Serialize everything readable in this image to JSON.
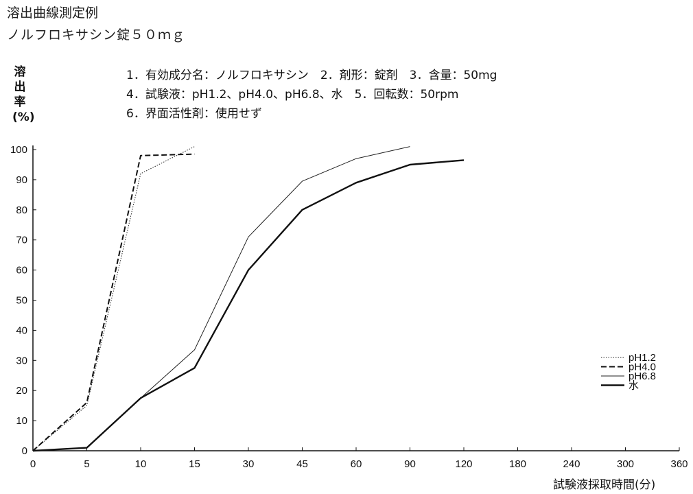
{
  "header": {
    "title": "溶出曲線測定例",
    "subtitle": "ノルフロキサシン錠５０ｍｇ"
  },
  "notes": [
    "1．有効成分名：ノルフロキサシン　2．剤形：錠剤　3．含量：50mg",
    "4．試験液：pH1.2、pH4.0、pH6.8、水　5．回転数：50rpm",
    "6．界面活性剤：使用せず"
  ],
  "chart_data": {
    "type": "line",
    "title": "",
    "xlabel": "試験液採取時間(分)",
    "ylabel": "溶出率(%)",
    "x": [
      "0",
      "5",
      "10",
      "15",
      "30",
      "45",
      "60",
      "90",
      "120",
      "180",
      "240",
      "300",
      "360"
    ],
    "xticks": [
      "0",
      "5",
      "10",
      "15",
      "30",
      "45",
      "60",
      "90",
      "120",
      "180",
      "240",
      "300",
      "360"
    ],
    "yticks": [
      "0",
      "10",
      "20",
      "30",
      "40",
      "50",
      "60",
      "70",
      "80",
      "90",
      "100"
    ],
    "ylim": [
      0,
      100
    ],
    "grid": false,
    "legend_position": "right",
    "series": [
      {
        "name": "pH1.2",
        "style": "dotted",
        "color": "#222222",
        "x": [
          "0",
          "5",
          "10",
          "15"
        ],
        "values": [
          0,
          15,
          92,
          101
        ]
      },
      {
        "name": "pH4.0",
        "style": "dashed",
        "color": "#111111",
        "x": [
          "0",
          "5",
          "10",
          "15"
        ],
        "values": [
          0,
          16,
          98,
          98.5
        ]
      },
      {
        "name": "pH6.8",
        "style": "thin",
        "color": "#222222",
        "x": [
          "0",
          "5",
          "10",
          "15",
          "30",
          "45",
          "60",
          "90"
        ],
        "values": [
          0,
          1,
          17.5,
          33.5,
          71,
          89.5,
          97,
          101
        ]
      },
      {
        "name": "水",
        "style": "thick",
        "color": "#111111",
        "x": [
          "0",
          "5",
          "10",
          "15",
          "30",
          "45",
          "60",
          "90",
          "120"
        ],
        "values": [
          0,
          1,
          17.5,
          27.5,
          60,
          80,
          89,
          95,
          96.5
        ]
      }
    ]
  }
}
